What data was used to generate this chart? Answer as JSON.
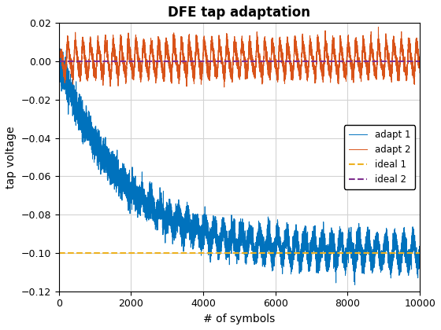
{
  "title": "DFE tap adaptation",
  "xlabel": "# of symbols",
  "ylabel": "tap voltage",
  "xlim": [
    0,
    10000
  ],
  "ylim": [
    -0.12,
    0.02
  ],
  "yticks": [
    -0.12,
    -0.1,
    -0.08,
    -0.06,
    -0.04,
    -0.02,
    0.0,
    0.02
  ],
  "xticks": [
    0,
    2000,
    4000,
    6000,
    8000,
    10000
  ],
  "adapt1_color": "#0072BD",
  "adapt2_color": "#D95319",
  "ideal1_color": "#EDB120",
  "ideal2_color": "#7E2F8E",
  "ideal1_value": -0.1,
  "ideal2_value": 0.0,
  "n_symbols": 10000,
  "legend_labels": [
    "adapt 1",
    "adapt 2",
    "ideal 1",
    "ideal 2"
  ],
  "legend_loc": "center right",
  "grid": true,
  "background_color": "#ffffff",
  "title_fontsize": 12,
  "label_fontsize": 10,
  "tick_fontsize": 9
}
